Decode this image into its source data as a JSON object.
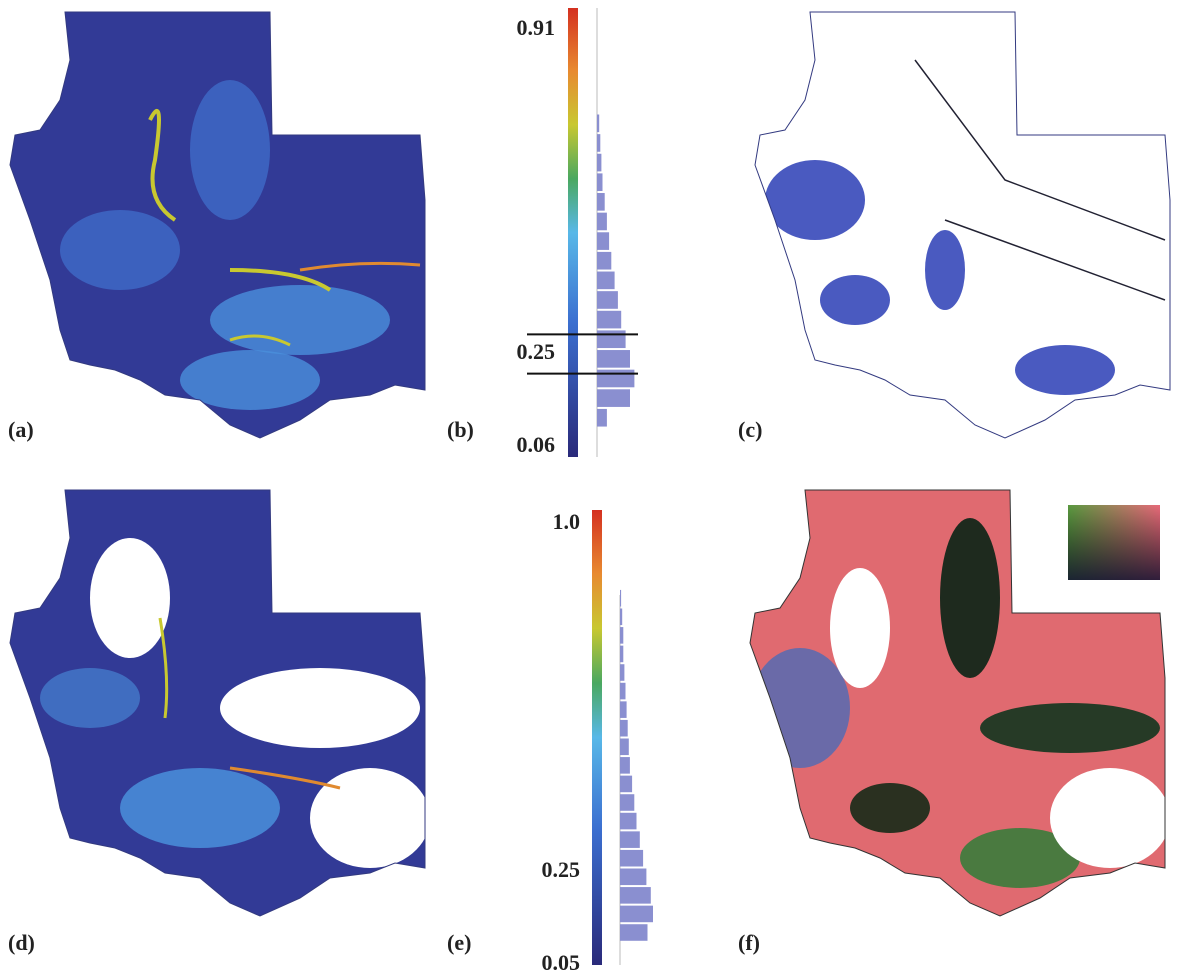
{
  "panels": [
    {
      "label": "(a)"
    },
    {
      "label": "(b)"
    },
    {
      "label": "(c)"
    },
    {
      "label": "(d)"
    },
    {
      "label": "(e)"
    },
    {
      "label": "(f)"
    }
  ],
  "colorbars": [
    {
      "clim": [
        0.04,
        0.955
      ],
      "ticks": [
        0.91,
        0.25,
        0.06
      ],
      "histogram": {
        "bins": [
          0.1,
          0.14,
          0.18,
          0.22,
          0.26,
          0.3,
          0.34,
          0.38,
          0.42,
          0.46,
          0.5,
          0.54,
          0.58,
          0.62,
          0.66,
          0.7,
          0.74
        ],
        "counts": [
          9,
          30,
          34,
          30,
          26,
          22,
          19,
          16,
          13,
          11,
          9,
          7,
          5,
          4,
          3,
          2
        ]
      },
      "thresholds": [
        0.29,
        0.21
      ]
    },
    {
      "clim": [
        0.05,
        1.03
      ],
      "ticks": [
        {
          "value": 1.0,
          "label": "1.0"
        },
        0.25,
        0.05
      ],
      "histogram": {
        "bins": [
          0.1,
          0.14,
          0.18,
          0.22,
          0.26,
          0.3,
          0.34,
          0.38,
          0.42,
          0.46,
          0.5,
          0.54,
          0.58,
          0.62,
          0.66,
          0.7,
          0.74,
          0.78,
          0.82,
          0.86
        ],
        "counts": [
          25,
          30,
          28,
          24,
          21,
          18,
          15,
          13,
          11,
          9,
          8,
          7,
          6,
          5,
          4,
          3,
          3,
          2,
          1
        ]
      }
    }
  ]
}
